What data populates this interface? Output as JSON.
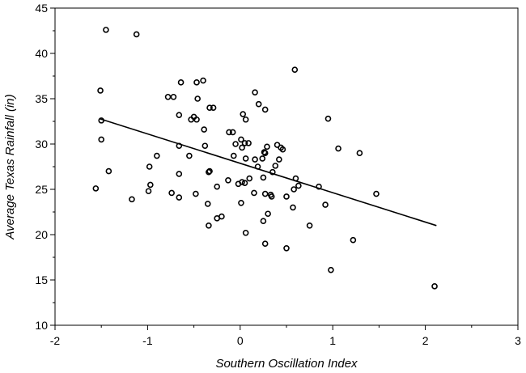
{
  "chart_data": {
    "type": "scatter",
    "xlabel": "Southern Oscillation Index",
    "ylabel": "Average Texas Rainfall (in)",
    "xlim": [
      -2,
      3
    ],
    "ylim": [
      10,
      45
    ],
    "xticks": [
      -2,
      -1,
      0,
      1,
      2,
      3
    ],
    "yticks": [
      10,
      15,
      20,
      25,
      30,
      35,
      40,
      45
    ],
    "grid": false,
    "marker": "open-circle",
    "points": [
      [
        -1.45,
        42.6
      ],
      [
        -1.12,
        42.1
      ],
      [
        0.59,
        38.2
      ],
      [
        -1.51,
        35.9
      ],
      [
        -0.64,
        36.8
      ],
      [
        -0.47,
        36.8
      ],
      [
        -0.4,
        37.0
      ],
      [
        -0.78,
        35.2
      ],
      [
        -0.72,
        35.2
      ],
      [
        -0.46,
        35.0
      ],
      [
        0.16,
        35.7
      ],
      [
        -0.33,
        34.0
      ],
      [
        -0.29,
        34.0
      ],
      [
        0.2,
        34.4
      ],
      [
        0.27,
        33.8
      ],
      [
        -0.66,
        33.2
      ],
      [
        -0.53,
        32.7
      ],
      [
        -0.5,
        33.0
      ],
      [
        -0.47,
        32.7
      ],
      [
        0.03,
        33.3
      ],
      [
        0.06,
        32.7
      ],
      [
        0.95,
        32.8
      ],
      [
        -1.5,
        32.6
      ],
      [
        -0.39,
        31.6
      ],
      [
        -0.12,
        31.3
      ],
      [
        -0.08,
        31.3
      ],
      [
        -1.5,
        30.5
      ],
      [
        -0.05,
        30.0
      ],
      [
        0.01,
        30.5
      ],
      [
        0.05,
        30.1
      ],
      [
        0.09,
        30.1
      ],
      [
        0.4,
        29.9
      ],
      [
        0.44,
        29.6
      ],
      [
        0.46,
        29.4
      ],
      [
        -0.66,
        29.8
      ],
      [
        -0.38,
        29.8
      ],
      [
        0.29,
        29.7
      ],
      [
        0.02,
        29.6
      ],
      [
        1.06,
        29.5
      ],
      [
        1.29,
        29.0
      ],
      [
        0.27,
        29.0
      ],
      [
        0.26,
        29.1
      ],
      [
        -0.9,
        28.7
      ],
      [
        -0.55,
        28.7
      ],
      [
        -0.07,
        28.7
      ],
      [
        0.06,
        28.4
      ],
      [
        0.16,
        28.3
      ],
      [
        0.24,
        28.4
      ],
      [
        0.42,
        28.3
      ],
      [
        -0.98,
        27.5
      ],
      [
        0.19,
        27.5
      ],
      [
        0.38,
        27.6
      ],
      [
        0.35,
        26.9
      ],
      [
        -1.42,
        27.0
      ],
      [
        -0.66,
        26.7
      ],
      [
        -0.34,
        26.9
      ],
      [
        -0.33,
        27.0
      ],
      [
        0.1,
        26.2
      ],
      [
        0.02,
        25.8
      ],
      [
        0.25,
        26.3
      ],
      [
        0.6,
        26.2
      ],
      [
        -0.97,
        25.5
      ],
      [
        -0.25,
        25.3
      ],
      [
        -0.13,
        26.0
      ],
      [
        -0.02,
        25.6
      ],
      [
        0.05,
        25.7
      ],
      [
        0.63,
        25.4
      ],
      [
        0.85,
        25.3
      ],
      [
        0.58,
        25.0
      ],
      [
        -1.56,
        25.1
      ],
      [
        -0.99,
        24.8
      ],
      [
        -0.74,
        24.6
      ],
      [
        -0.66,
        24.1
      ],
      [
        -0.48,
        24.5
      ],
      [
        0.15,
        24.6
      ],
      [
        0.27,
        24.5
      ],
      [
        0.33,
        24.4
      ],
      [
        0.34,
        24.2
      ],
      [
        0.5,
        24.2
      ],
      [
        1.47,
        24.5
      ],
      [
        -1.17,
        23.9
      ],
      [
        -0.35,
        23.4
      ],
      [
        0.01,
        23.5
      ],
      [
        0.57,
        23.0
      ],
      [
        0.92,
        23.3
      ],
      [
        0.3,
        22.3
      ],
      [
        -0.25,
        21.8
      ],
      [
        -0.2,
        22.0
      ],
      [
        0.25,
        21.5
      ],
      [
        0.75,
        21.0
      ],
      [
        -0.34,
        21.0
      ],
      [
        0.06,
        20.2
      ],
      [
        1.22,
        19.4
      ],
      [
        0.27,
        19.0
      ],
      [
        0.5,
        18.5
      ],
      [
        0.98,
        16.1
      ],
      [
        2.1,
        14.3
      ]
    ],
    "trendline": {
      "x": [
        -1.52,
        2.12
      ],
      "y": [
        32.8,
        21.0
      ]
    }
  }
}
